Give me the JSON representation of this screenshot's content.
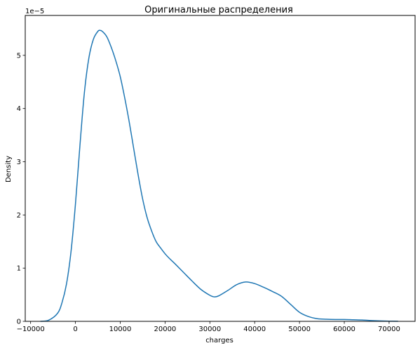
{
  "chart_data": {
    "type": "line",
    "title": "Оригинальные распределения",
    "xlabel": "charges",
    "ylabel": "Density",
    "y_offset_text": "1e−5",
    "y_scale": 1e-05,
    "xlim": [
      -11200,
      75800
    ],
    "ylim": [
      0,
      5.75
    ],
    "xticks": [
      -10000,
      0,
      10000,
      20000,
      30000,
      40000,
      50000,
      60000,
      70000
    ],
    "xtick_labels": [
      "−10000",
      "0",
      "10000",
      "20000",
      "30000",
      "40000",
      "50000",
      "60000",
      "70000"
    ],
    "yticks": [
      0,
      1,
      2,
      3,
      4,
      5
    ],
    "ytick_labels": [
      "0",
      "1",
      "2",
      "3",
      "4",
      "5"
    ],
    "grid": false,
    "line_color": "#1f77b4",
    "series": [
      {
        "name": "",
        "x": [
          -7800,
          -6000,
          -4000,
          -3000,
          -2000,
          -1000,
          0,
          1000,
          2000,
          3000,
          4000,
          5000,
          5500,
          6000,
          7000,
          8000,
          9000,
          10000,
          11000,
          12000,
          13000,
          14000,
          15000,
          16000,
          17000,
          18000,
          19000,
          20000,
          21000,
          22000,
          24000,
          26000,
          28000,
          30000,
          31000,
          32000,
          34000,
          36000,
          38000,
          40000,
          42000,
          44000,
          46000,
          48000,
          50000,
          52000,
          54000,
          56000,
          58000,
          60000,
          62000,
          64000,
          66000,
          68000,
          70000,
          72000
        ],
        "y": [
          0.0,
          0.02,
          0.15,
          0.35,
          0.7,
          1.3,
          2.2,
          3.3,
          4.3,
          4.95,
          5.3,
          5.45,
          5.47,
          5.45,
          5.35,
          5.15,
          4.9,
          4.6,
          4.2,
          3.75,
          3.25,
          2.75,
          2.3,
          1.95,
          1.7,
          1.5,
          1.38,
          1.27,
          1.18,
          1.1,
          0.93,
          0.76,
          0.6,
          0.49,
          0.46,
          0.48,
          0.58,
          0.69,
          0.74,
          0.71,
          0.64,
          0.56,
          0.47,
          0.32,
          0.17,
          0.09,
          0.05,
          0.04,
          0.035,
          0.035,
          0.03,
          0.025,
          0.015,
          0.008,
          0.004,
          0.002
        ]
      }
    ]
  }
}
